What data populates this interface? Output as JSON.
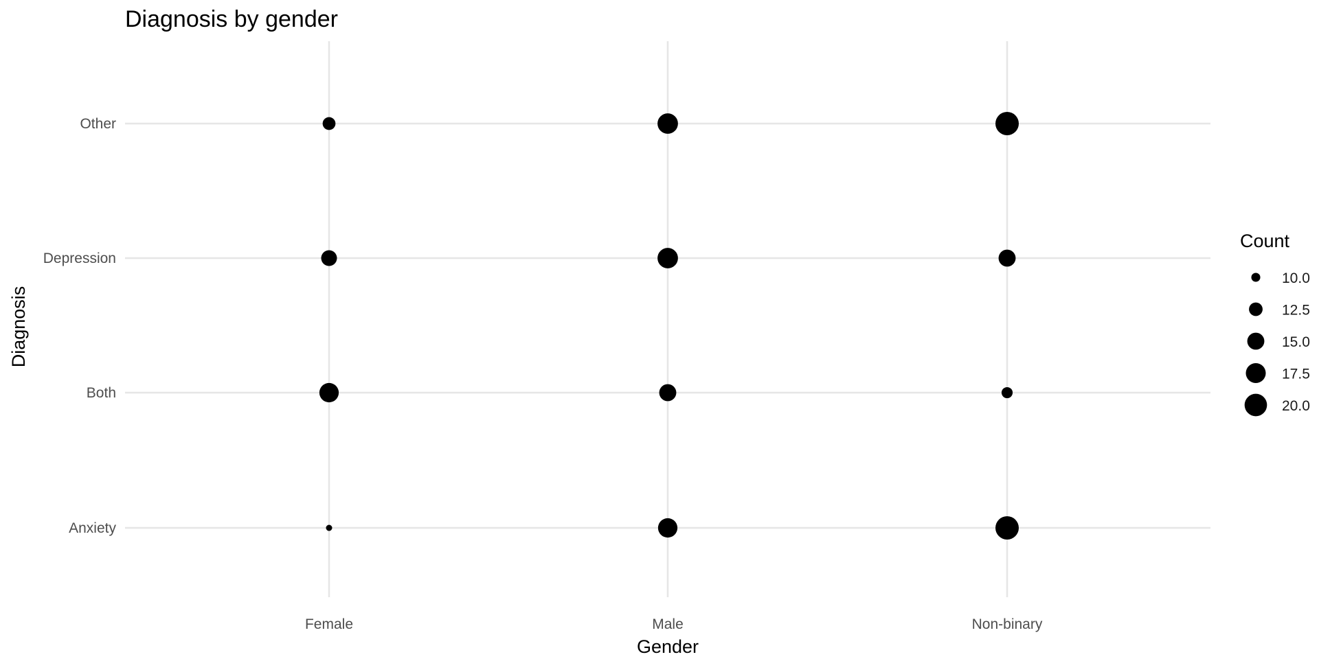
{
  "chart_data": {
    "type": "scatter",
    "title": "Diagnosis by gender",
    "xlabel": "Gender",
    "ylabel": "Diagnosis",
    "x_categories": [
      "Female",
      "Male",
      "Non-binary"
    ],
    "y_categories": [
      "Anxiety",
      "Both",
      "Depression",
      "Other"
    ],
    "points": [
      {
        "x": "Female",
        "y": "Anxiety",
        "count": 9
      },
      {
        "x": "Female",
        "y": "Both",
        "count": 17
      },
      {
        "x": "Female",
        "y": "Depression",
        "count": 14
      },
      {
        "x": "Female",
        "y": "Other",
        "count": 12
      },
      {
        "x": "Male",
        "y": "Anxiety",
        "count": 17
      },
      {
        "x": "Male",
        "y": "Both",
        "count": 15
      },
      {
        "x": "Male",
        "y": "Depression",
        "count": 18
      },
      {
        "x": "Male",
        "y": "Other",
        "count": 18
      },
      {
        "x": "Non-binary",
        "y": "Anxiety",
        "count": 21
      },
      {
        "x": "Non-binary",
        "y": "Both",
        "count": 11
      },
      {
        "x": "Non-binary",
        "y": "Depression",
        "count": 15
      },
      {
        "x": "Non-binary",
        "y": "Other",
        "count": 21
      }
    ],
    "legend": {
      "title": "Count",
      "values": [
        10.0,
        12.5,
        15.0,
        17.5,
        20.0
      ],
      "labels": [
        "10.0",
        "12.5",
        "15.0",
        "17.5",
        "20.0"
      ],
      "position": "right"
    },
    "size_range": [
      9,
      21
    ],
    "grid": true,
    "point_color": "#000000",
    "grid_color": "#e6e6e6"
  }
}
